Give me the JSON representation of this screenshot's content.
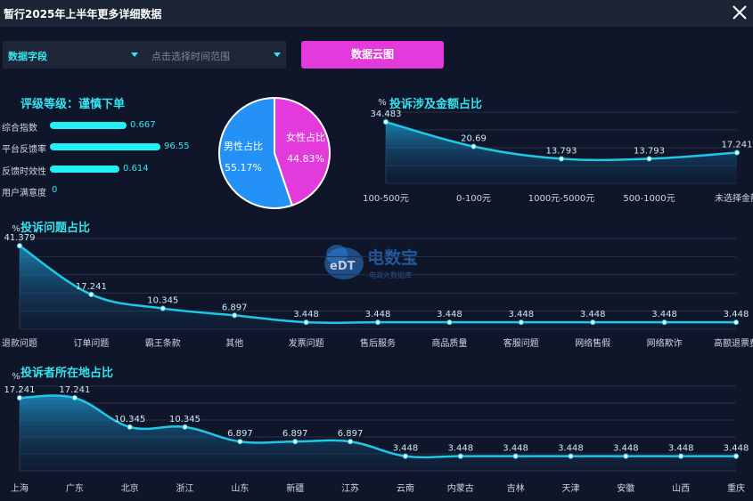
{
  "window": {
    "title": "暂行2025年上半年更多详细数据"
  },
  "filters": {
    "field_label": "数据字段",
    "date_placeholder": "点击选择时间范围",
    "cloud_button": "数据云图"
  },
  "rating": {
    "title": "评级等级：谨慎下单",
    "metrics": [
      {
        "label": "综合指数",
        "value": "0.667",
        "fill": 0.66
      },
      {
        "label": "平台反馈率",
        "value": "96.55",
        "fill": 0.95
      },
      {
        "label": "反馈时效性",
        "value": "0.614",
        "fill": 0.6
      },
      {
        "label": "用户满意度",
        "value": "0",
        "fill": 0
      }
    ]
  },
  "gender_pie": {
    "slices": [
      {
        "label": "女性占比",
        "value_text": "44.83%",
        "value": 44.83,
        "color": "#e23adb"
      },
      {
        "label": "男性占比",
        "value_text": "55.17%",
        "value": 55.17,
        "color": "#2391f5"
      }
    ]
  },
  "watermark": {
    "name": "电数宝",
    "sub": "电商大数据库"
  },
  "chart_data": [
    {
      "type": "area",
      "title": "投诉涉及金额占比",
      "ylabel": "%",
      "categories": [
        "100-500元",
        "0-100元",
        "1000元-5000元",
        "500-1000元",
        "未选择金额"
      ],
      "values": [
        34.483,
        20.69,
        13.793,
        13.793,
        17.241
      ],
      "value_labels": [
        "34.483",
        "20.69",
        "13.793",
        "13.793",
        "17.241"
      ],
      "ylim": [
        0,
        40
      ],
      "grid": true
    },
    {
      "type": "area",
      "title": "投诉问题占比",
      "ylabel": "%",
      "categories": [
        "退款问题",
        "订单问题",
        "霸王条款",
        "其他",
        "发票问题",
        "售后服务",
        "商品质量",
        "客服问题",
        "网络售假",
        "网络欺诈",
        "高额退票费"
      ],
      "values": [
        41.379,
        17.241,
        10.345,
        6.897,
        3.448,
        3.448,
        3.448,
        3.448,
        3.448,
        3.448,
        3.448
      ],
      "value_labels": [
        "41.379",
        "17.241",
        "10.345",
        "6.897",
        "3.448",
        "3.448",
        "3.448",
        "3.448",
        "3.448",
        "3.448",
        "3.448"
      ],
      "ylim": [
        0,
        45
      ],
      "grid": true
    },
    {
      "type": "area",
      "title": "投诉者所在地占比",
      "ylabel": "%",
      "categories": [
        "上海",
        "广东",
        "北京",
        "浙江",
        "山东",
        "新疆",
        "江苏",
        "云南",
        "内蒙古",
        "吉林",
        "天津",
        "安徽",
        "山西",
        "重庆"
      ],
      "values": [
        17.241,
        17.241,
        10.345,
        10.345,
        6.897,
        6.897,
        6.897,
        3.448,
        3.448,
        3.448,
        3.448,
        3.448,
        3.448,
        3.448
      ],
      "value_labels": [
        "17.241",
        "17.241",
        "10.345",
        "10.345",
        "6.897",
        "6.897",
        "6.897",
        "3.448",
        "3.448",
        "3.448",
        "3.448",
        "3.448",
        "3.448",
        "3.448"
      ],
      "ylim": [
        0,
        20
      ],
      "grid": true
    }
  ],
  "colors": {
    "accent": "#36e2ef",
    "line": "#1ec8e6",
    "magenta": "#e23adb",
    "blue": "#2391f5"
  }
}
